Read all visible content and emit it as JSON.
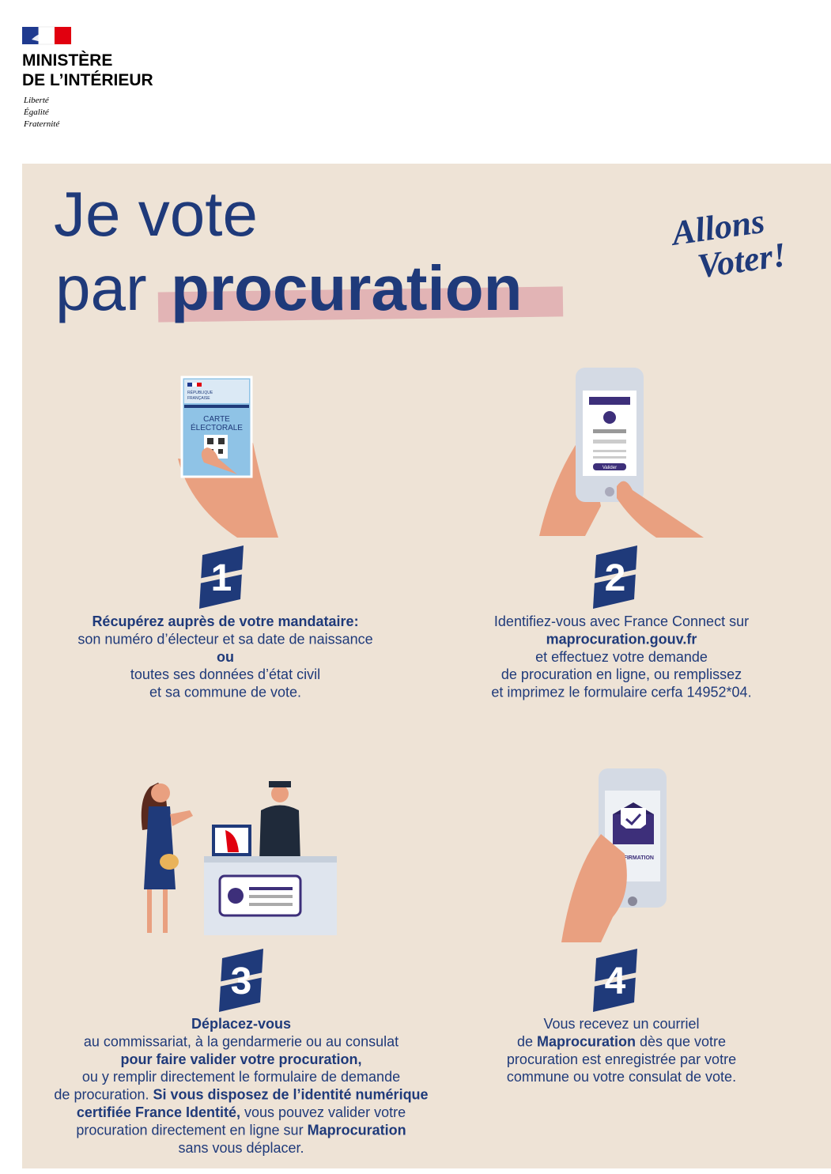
{
  "header": {
    "ministry": [
      "MINISTÈRE",
      "DE L’INTÉRIEUR"
    ],
    "motto": [
      "Liberté",
      "Égalité",
      "Fraternité"
    ]
  },
  "title": {
    "line1": "Je vote",
    "line2": "par",
    "highlight": "procuration"
  },
  "slogan": [
    "Allons",
    "Voter!"
  ],
  "steps": [
    {
      "number": "1",
      "illustration": [
        "RÉPUBLIQUE",
        "FRANÇAISE",
        "CARTE",
        "ÉLECTORALE"
      ],
      "lines": [
        [
          {
            "text": "Récupérez auprès de votre mandataire:",
            "bold": true
          }
        ],
        [
          {
            "text": "son numéro d’électeur et sa date de naissance",
            "bold": false
          }
        ],
        [
          {
            "text": "ou",
            "bold": true
          }
        ],
        [
          {
            "text": "toutes ses données d’état civil",
            "bold": false
          }
        ],
        [
          {
            "text": "et sa commune de vote.",
            "bold": false
          }
        ]
      ]
    },
    {
      "number": "2",
      "illustration": [
        "Valider"
      ],
      "lines": [
        [
          {
            "text": "Identifiez-vous avec France Connect sur",
            "bold": false
          }
        ],
        [
          {
            "text": "maprocuration.gouv.fr",
            "bold": true
          }
        ],
        [
          {
            "text": "et effectuez votre demande",
            "bold": false
          }
        ],
        [
          {
            "text": "de procuration en ligne, ou remplissez",
            "bold": false
          }
        ],
        [
          {
            "text": "et imprimez le formulaire cerfa 14952*04.",
            "bold": false
          }
        ]
      ]
    },
    {
      "number": "3",
      "lines": [
        [
          {
            "text": "Déplacez-vous",
            "bold": true
          }
        ],
        [
          {
            "text": "au commissariat, à la gendarmerie ou au consulat",
            "bold": false
          }
        ],
        [
          {
            "text": "pour faire valider votre procuration,",
            "bold": true
          }
        ],
        [
          {
            "text": "ou y remplir directement le formulaire de demande",
            "bold": false
          }
        ],
        [
          {
            "text": "de procuration. ",
            "bold": false
          },
          {
            "text": "Si vous disposez de l’identité numérique",
            "bold": true
          }
        ],
        [
          {
            "text": "certifiée France Identité,",
            "bold": true
          },
          {
            "text": " vous pouvez valider votre",
            "bold": false
          }
        ],
        [
          {
            "text": "procuration directement en ligne sur ",
            "bold": false
          },
          {
            "text": "Maprocuration",
            "bold": true
          }
        ],
        [
          {
            "text": "sans vous déplacer.",
            "bold": false
          }
        ]
      ]
    },
    {
      "number": "4",
      "illustration": [
        "CONFIRMATION"
      ],
      "lines": [
        [
          {
            "text": "Vous recevez un courriel",
            "bold": false
          }
        ],
        [
          {
            "text": "de ",
            "bold": false
          },
          {
            "text": "Maprocuration",
            "bold": true
          },
          {
            "text": " dès que votre",
            "bold": false
          }
        ],
        [
          {
            "text": "procuration est enregistrée par votre",
            "bold": false
          }
        ],
        [
          {
            "text": "commune ou votre consulat de vote.",
            "bold": false
          }
        ]
      ]
    }
  ]
}
